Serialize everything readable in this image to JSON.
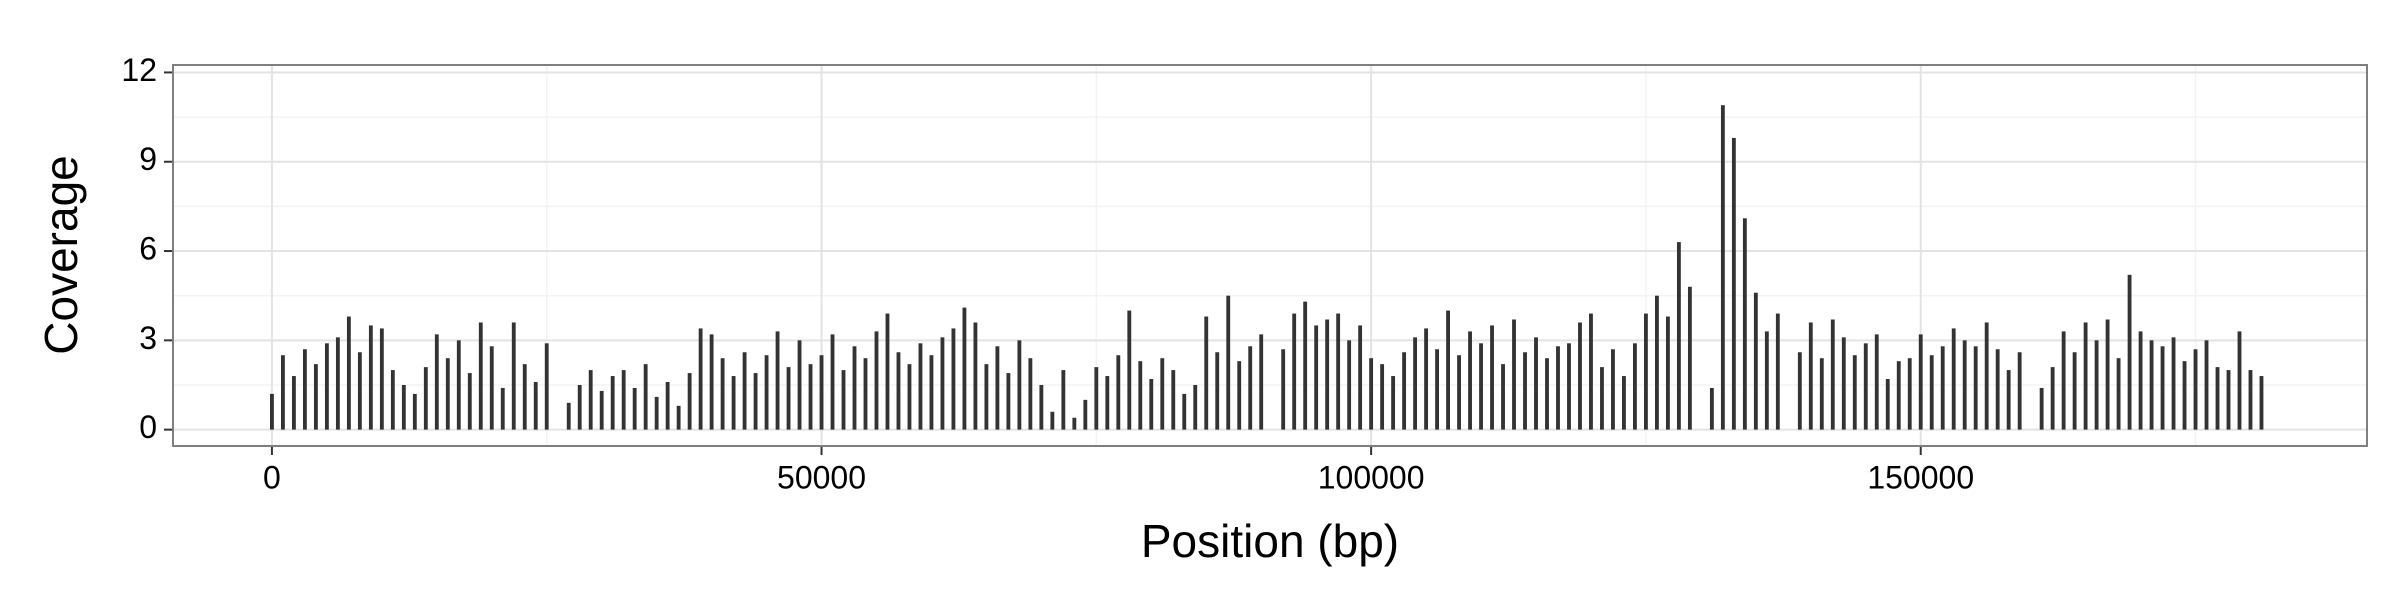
{
  "chart_data": {
    "type": "bar",
    "x_label": "Position (bp)",
    "y_label": "Coverage",
    "color": "#333333",
    "grid": true,
    "xlim": [
      -9000,
      190600
    ],
    "ylim": [
      -0.55,
      12.25
    ],
    "xticks": [
      0,
      50000,
      100000,
      150000
    ],
    "yticks": [
      0,
      3,
      6,
      9,
      12
    ],
    "xminor": [
      25000,
      75000,
      125000,
      175000
    ],
    "yminor": [
      1.5,
      4.5,
      7.5,
      10.5
    ],
    "x": [
      0,
      1000,
      2000,
      3000,
      4000,
      5000,
      6000,
      7000,
      8000,
      9000,
      10000,
      11000,
      12000,
      13000,
      14000,
      15000,
      16000,
      17000,
      18000,
      19000,
      20000,
      21000,
      22000,
      23000,
      24000,
      25000,
      26000,
      27000,
      28000,
      29000,
      30000,
      31000,
      32000,
      33000,
      34000,
      35000,
      36000,
      37000,
      38000,
      39000,
      40000,
      41000,
      42000,
      43000,
      44000,
      45000,
      46000,
      47000,
      48000,
      49000,
      50000,
      51000,
      52000,
      53000,
      54000,
      55000,
      56000,
      57000,
      58000,
      59000,
      60000,
      61000,
      62000,
      63000,
      64000,
      65000,
      66000,
      67000,
      68000,
      69000,
      70000,
      71000,
      72000,
      73000,
      74000,
      75000,
      76000,
      77000,
      78000,
      79000,
      80000,
      81000,
      82000,
      83000,
      84000,
      85000,
      86000,
      87000,
      88000,
      89000,
      90000,
      91000,
      92000,
      93000,
      94000,
      95000,
      96000,
      97000,
      98000,
      99000,
      100000,
      101000,
      102000,
      103000,
      104000,
      105000,
      106000,
      107000,
      108000,
      109000,
      110000,
      111000,
      112000,
      113000,
      114000,
      115000,
      116000,
      117000,
      118000,
      119000,
      120000,
      121000,
      122000,
      123000,
      124000,
      125000,
      126000,
      127000,
      128000,
      129000,
      130000,
      131000,
      132000,
      133000,
      134000,
      135000,
      136000,
      137000,
      138000,
      139000,
      140000,
      141000,
      142000,
      143000,
      144000,
      145000,
      146000,
      147000,
      148000,
      149000,
      150000,
      151000,
      152000,
      153000,
      154000,
      155000,
      156000,
      157000,
      158000,
      159000,
      160000,
      161000,
      162000,
      163000,
      164000,
      165000,
      166000,
      167000,
      168000,
      169000,
      170000,
      171000,
      172000,
      173000,
      174000,
      175000,
      176000,
      177000,
      178000,
      179000,
      180000,
      181000
    ],
    "values": [
      1.2,
      2.5,
      1.8,
      2.7,
      2.2,
      2.9,
      3.1,
      3.8,
      2.6,
      3.5,
      3.4,
      2.0,
      1.5,
      1.2,
      2.1,
      3.2,
      2.4,
      3.0,
      1.9,
      3.6,
      2.8,
      1.4,
      3.6,
      2.2,
      1.6,
      2.9,
      0,
      0.9,
      1.5,
      2.0,
      1.3,
      1.8,
      2.0,
      1.4,
      2.2,
      1.1,
      1.6,
      0.8,
      1.9,
      3.4,
      3.2,
      2.4,
      1.8,
      2.6,
      1.9,
      2.5,
      3.3,
      2.1,
      3.0,
      2.2,
      2.5,
      3.2,
      2.0,
      2.8,
      2.4,
      3.3,
      3.9,
      2.6,
      2.2,
      2.9,
      2.5,
      3.1,
      3.4,
      4.1,
      3.6,
      2.2,
      2.8,
      1.9,
      3.0,
      2.4,
      1.5,
      0.6,
      2.0,
      0.4,
      1.0,
      2.1,
      1.8,
      2.5,
      4.0,
      2.3,
      1.7,
      2.4,
      2.0,
      1.2,
      1.5,
      3.8,
      2.6,
      4.5,
      2.3,
      2.8,
      3.2,
      0,
      2.7,
      3.9,
      4.3,
      3.5,
      3.7,
      3.9,
      3.0,
      3.5,
      2.4,
      2.2,
      1.8,
      2.6,
      3.1,
      3.4,
      2.7,
      4.0,
      2.5,
      3.3,
      2.9,
      3.5,
      2.2,
      3.7,
      2.6,
      3.1,
      2.4,
      2.8,
      2.9,
      3.6,
      3.9,
      2.1,
      2.7,
      1.8,
      2.9,
      3.9,
      4.5,
      3.8,
      6.3,
      4.8,
      0,
      1.4,
      10.9,
      9.8,
      7.1,
      4.6,
      3.3,
      3.9,
      0,
      2.6,
      3.6,
      2.4,
      3.7,
      3.1,
      2.5,
      2.9,
      3.2,
      1.7,
      2.3,
      2.4,
      3.2,
      2.5,
      2.8,
      3.4,
      3.0,
      2.8,
      3.6,
      2.7,
      2.0,
      2.6,
      0,
      1.4,
      2.1,
      3.3,
      2.6,
      3.6,
      3.0,
      3.7,
      2.4,
      5.2,
      3.3,
      3.0,
      2.8,
      3.1,
      2.3,
      2.7,
      3.0,
      2.1,
      2.0,
      3.3,
      2.0,
      1.8
    ]
  }
}
